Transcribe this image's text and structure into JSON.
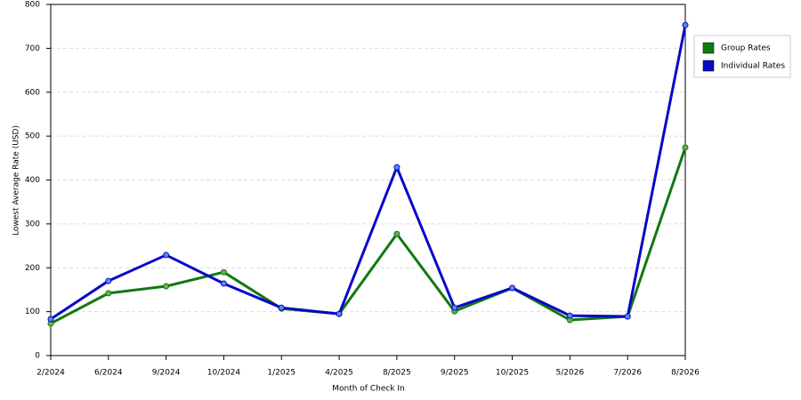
{
  "chart_data": {
    "type": "line",
    "x_label": "Month of Check In",
    "y_label": "Lowest Average Rate (USD)",
    "categories": [
      "2/2024",
      "6/2024",
      "9/2024",
      "10/2024",
      "1/2025",
      "4/2025",
      "8/2025",
      "9/2025",
      "10/2025",
      "5/2026",
      "7/2026",
      "8/2026"
    ],
    "series": [
      {
        "name": "Group Rates",
        "color": "#127812",
        "values": [
          73,
          142,
          158,
          190,
          107,
          95,
          277,
          101,
          154,
          81,
          89,
          474
        ]
      },
      {
        "name": "Individual Rates",
        "color": "#0808c8",
        "values": [
          83,
          170,
          229,
          164,
          109,
          95,
          429,
          109,
          154,
          91,
          89,
          753
        ]
      }
    ],
    "ylim": [
      0,
      800
    ],
    "yticks": [
      0,
      100,
      200,
      300,
      400,
      500,
      600,
      700,
      800
    ],
    "grid": true,
    "legend": "right"
  }
}
